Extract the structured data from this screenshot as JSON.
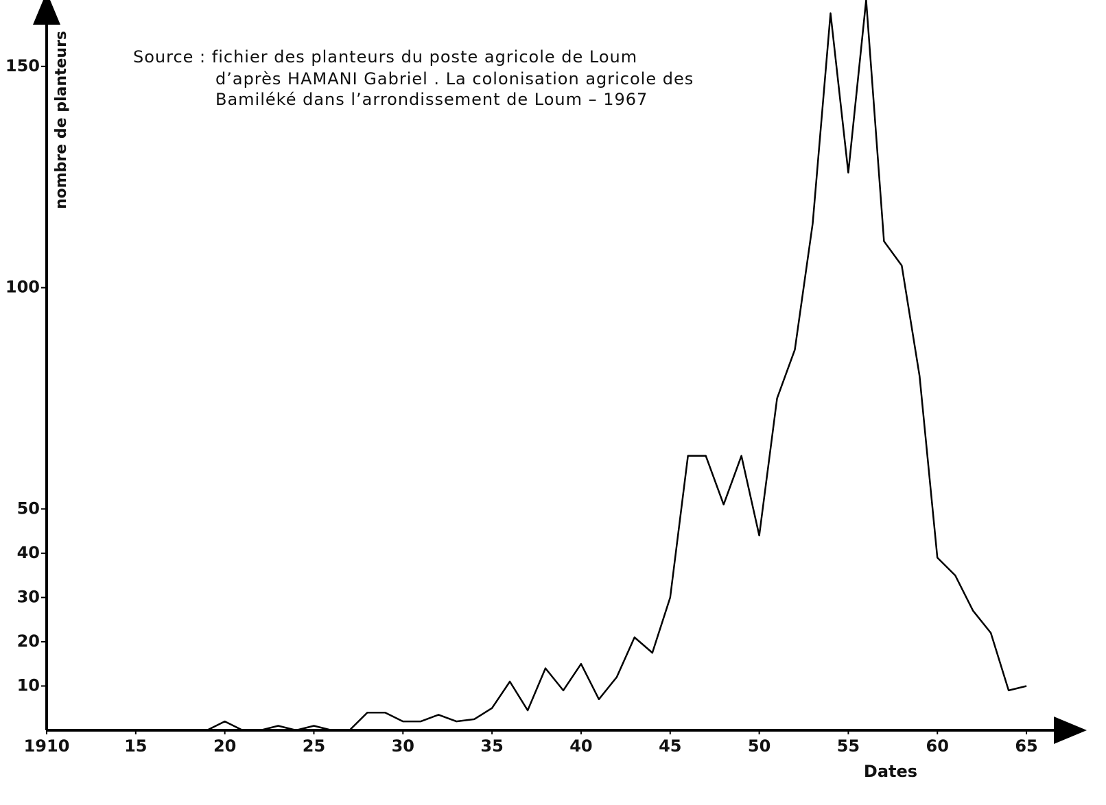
{
  "chart_data": {
    "type": "line",
    "title": [
      "Source : fichier des planteurs du poste agricole de Loum",
      "d’après HAMANI  Gabriel . La colonisation agricole des",
      "Bamiléké  dans  l’arrondissement de Loum – 1967"
    ],
    "ylabel": "nombre de planteurs",
    "xlabel": "Dates",
    "x": [
      1910,
      1911,
      1912,
      1913,
      1914,
      1915,
      1916,
      1917,
      1918,
      1919,
      1920,
      1921,
      1922,
      1923,
      1924,
      1925,
      1926,
      1927,
      1928,
      1929,
      1930,
      1931,
      1932,
      1933,
      1934,
      1935,
      1936,
      1937,
      1938,
      1939,
      1940,
      1941,
      1942,
      1943,
      1944,
      1945,
      1946,
      1947,
      1948,
      1949,
      1950,
      1951,
      1952,
      1953,
      1954,
      1955,
      1956,
      1957,
      1958,
      1959,
      1960,
      1961,
      1962,
      1963,
      1964,
      1965
    ],
    "values": [
      0,
      0,
      0,
      0,
      0,
      0,
      0,
      0,
      0,
      0,
      2,
      0,
      0,
      1,
      0,
      1,
      0,
      0,
      4,
      4,
      2,
      2,
      3.5,
      2,
      2.5,
      5,
      11,
      4.5,
      14,
      9,
      15,
      7,
      12,
      21,
      17.5,
      30,
      62,
      62,
      51,
      62,
      44,
      75,
      86,
      114.5,
      162,
      126,
      165,
      110.5,
      105,
      80,
      39,
      35,
      27,
      22,
      9,
      10
    ],
    "color": "#000000",
    "xlim": [
      1910,
      1967
    ],
    "ylim": [
      0,
      165
    ],
    "xticks": [
      1910,
      {
        "value": 1915,
        "label": "15"
      },
      {
        "value": 1920,
        "label": "20"
      },
      {
        "value": 1925,
        "label": "25"
      },
      {
        "value": 1930,
        "label": "30"
      },
      {
        "value": 1935,
        "label": "35"
      },
      {
        "value": 1940,
        "label": "40"
      },
      {
        "value": 1945,
        "label": "45"
      },
      {
        "value": 1950,
        "label": "50"
      },
      {
        "value": 1955,
        "label": "55"
      },
      {
        "value": 1960,
        "label": "60"
      },
      {
        "value": 1965,
        "label": "65"
      }
    ],
    "yticks": [
      10,
      20,
      30,
      40,
      50,
      100,
      150
    ],
    "grid": false
  }
}
